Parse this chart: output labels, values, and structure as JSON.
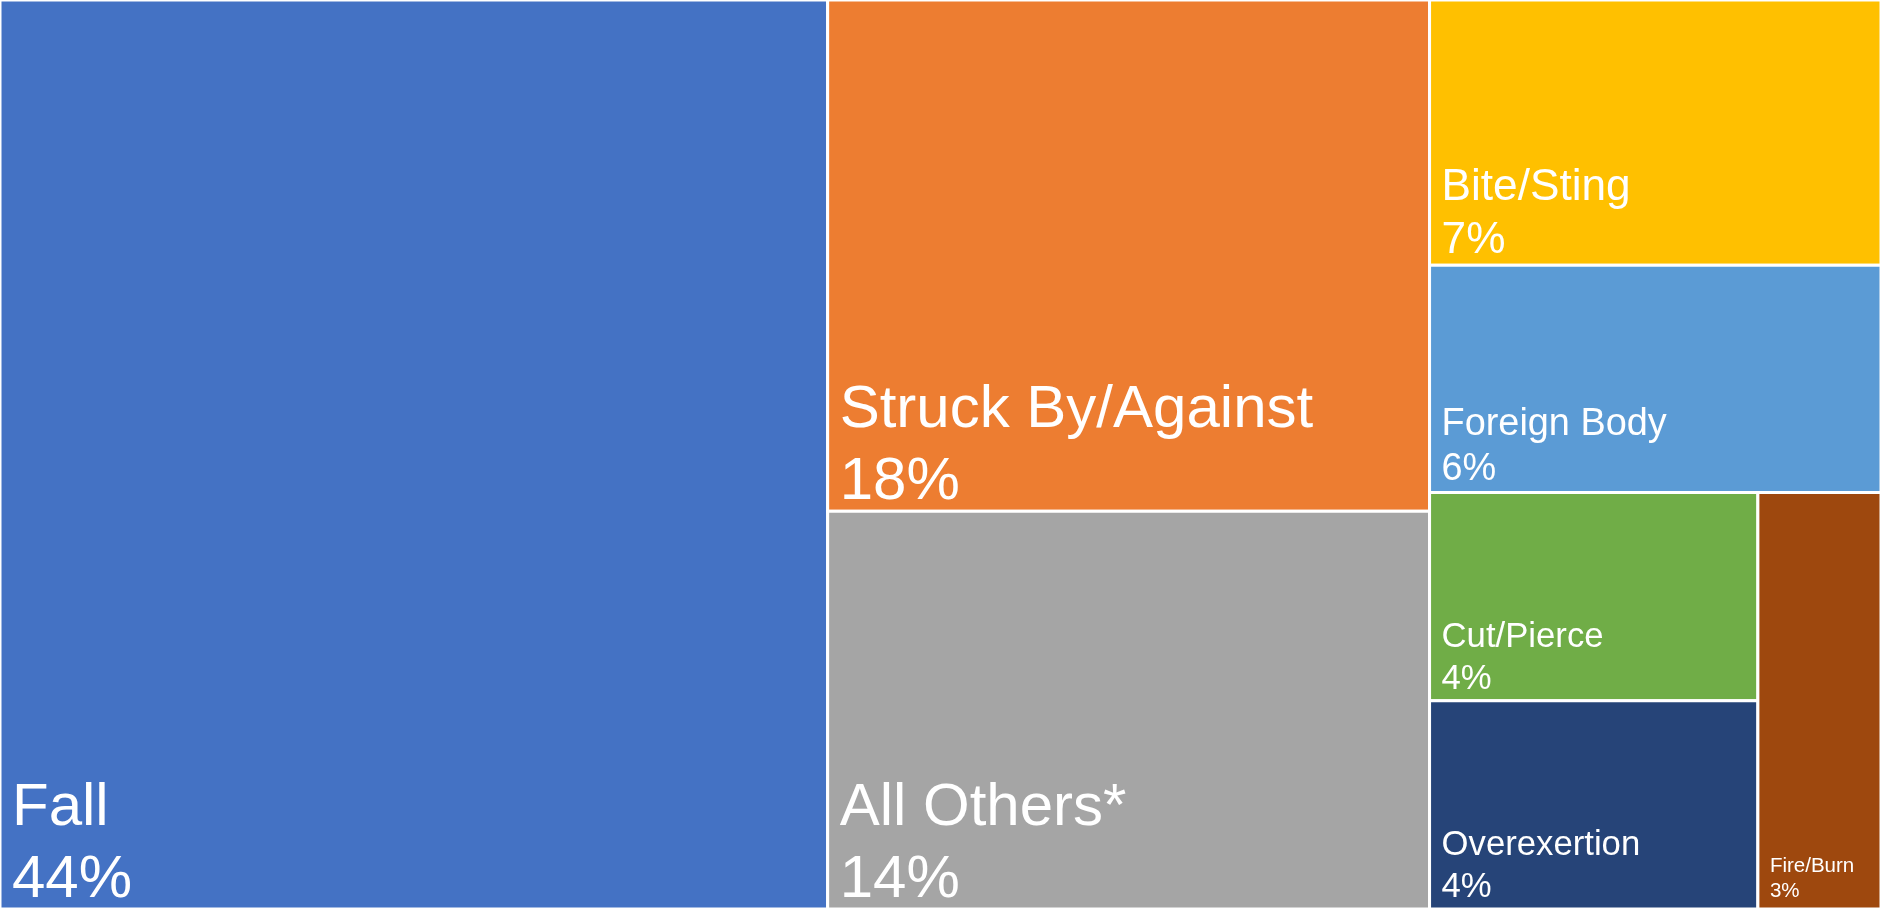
{
  "chart_data": {
    "type": "other",
    "categories": [
      "Fall",
      "Struck By/Against",
      "All Others*",
      "Bite/Sting",
      "Foreign Body",
      "Cut/Pierce",
      "Overexertion",
      "Fire/Burn"
    ],
    "values": [
      44,
      18,
      14,
      7,
      6,
      4,
      4,
      3
    ],
    "value_labels": [
      "44%",
      "18%",
      "14%",
      "7%",
      "6%",
      "4%",
      "4%",
      "3%"
    ],
    "colors": [
      "#4472c4",
      "#ed7d31",
      "#a5a5a5",
      "#ffc000",
      "#5b9bd5",
      "#70ad47",
      "#264478",
      "#9e480e"
    ]
  }
}
